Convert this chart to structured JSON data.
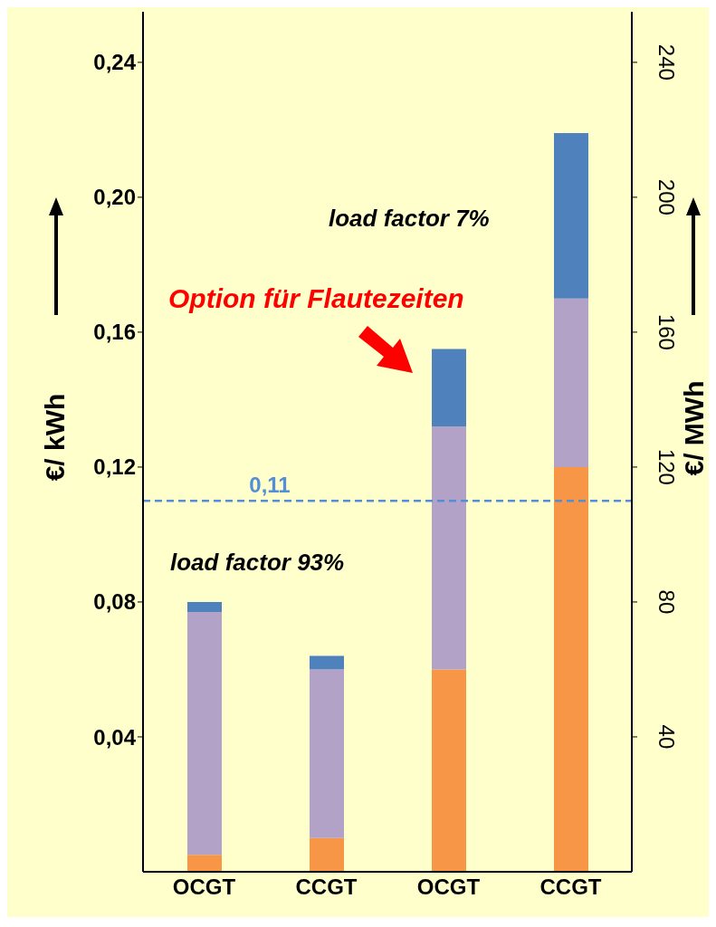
{
  "chart_data": {
    "type": "bar",
    "stacked": true,
    "categories": [
      "OCGT",
      "CCGT",
      "OCGT",
      "CCGT"
    ],
    "series": [
      {
        "color": "#f79646",
        "values": [
          0.005,
          0.01,
          0.06,
          0.12
        ]
      },
      {
        "color": "#b3a2c7",
        "values": [
          0.072,
          0.05,
          0.072,
          0.05
        ]
      },
      {
        "color": "#4f81bd",
        "values": [
          0.003,
          0.004,
          0.023,
          0.049
        ]
      }
    ],
    "ylim": [
      0,
      0.255
    ],
    "yticks": [
      {
        "value": 0.04,
        "label": "0,04"
      },
      {
        "value": 0.08,
        "label": "0,08"
      },
      {
        "value": 0.12,
        "label": "0,12"
      },
      {
        "value": 0.16,
        "label": "0,16"
      },
      {
        "value": 0.2,
        "label": "0,20"
      },
      {
        "value": 0.24,
        "label": "0,24"
      }
    ],
    "y2lim": [
      0,
      255
    ],
    "y2ticks": [
      40,
      80,
      120,
      160,
      200,
      240
    ],
    "ylabel": "€/ kWh",
    "y2label": "€/ MWh",
    "ref_lines": [
      {
        "axis": "y",
        "value": 0.11,
        "label": "0,11",
        "color": "#558ed5",
        "line_style": "dashed"
      }
    ],
    "annotations": [
      "load factor 93%",
      "load factor 7%",
      "Option für Flautezeiten"
    ]
  }
}
